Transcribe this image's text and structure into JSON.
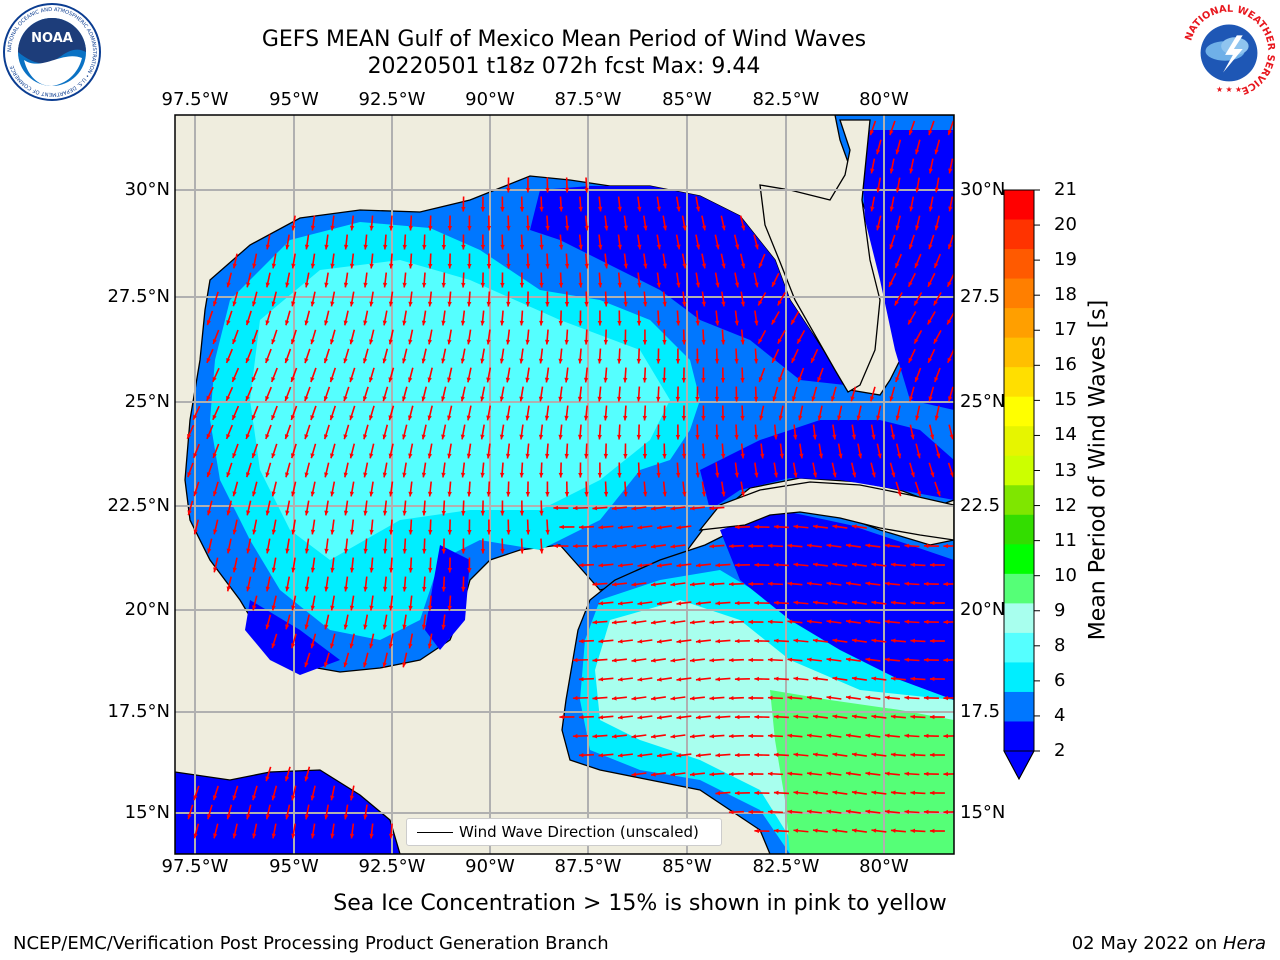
{
  "header": {
    "title_line1": "GEFS MEAN Gulf of Mexico Mean Period of Wind Waves",
    "title_line2": "20220501 t18z 072h fcst   Max: 9.44"
  },
  "axes": {
    "lon_labels": [
      "97.5°W",
      "95°W",
      "92.5°W",
      "90°W",
      "87.5°W",
      "85°W",
      "82.5°W",
      "80°W"
    ],
    "lat_labels_left": [
      "30°N",
      "27.5°N",
      "25°N",
      "22.5°N",
      "20°N",
      "17.5°N",
      "15°N"
    ],
    "lat_labels_right": [
      "30°N",
      "27.5",
      "25°N",
      "22.5",
      "20°N",
      "17.5",
      "15°N"
    ]
  },
  "colorbar": {
    "label": "Mean Period of Wind Waves [s]",
    "ticks": [
      "21",
      "20",
      "19",
      "18",
      "17",
      "16",
      "15",
      "14",
      "13",
      "12",
      "11",
      "10",
      "9",
      "8",
      "6",
      "4",
      "2"
    ],
    "colors": [
      "#ff0000",
      "#ff3300",
      "#ff5a00",
      "#ff7f00",
      "#ff9f00",
      "#ffbf00",
      "#ffdf00",
      "#ffff00",
      "#e6f500",
      "#ccff00",
      "#7fe600",
      "#33dd00",
      "#00ff00",
      "#55ff77",
      "#a8ffee",
      "#55ffff",
      "#00eeff",
      "#0077ff",
      "#0000ff"
    ]
  },
  "legend": {
    "label": "Wind Wave Direction (unscaled)"
  },
  "caption": "Sea Ice Concentration > 15% is shown in pink to yellow",
  "footer": {
    "left": "NCEP/EMC/Verification Post Processing Product Generation Branch",
    "right_date": "02 May 2022 on ",
    "right_system": "Hera"
  },
  "logos": {
    "noaa": "NOAA",
    "noaa_ring": "NATIONAL OCEANIC AND ATMOSPHERIC ADMINISTRATION • U.S. DEPARTMENT OF COMMERCE",
    "nws_ring": "NATIONAL WEATHER SERVICE"
  },
  "colors": {
    "land": "#efedde",
    "grid": "#b0b0b0",
    "arrow": "#ff0000"
  }
}
